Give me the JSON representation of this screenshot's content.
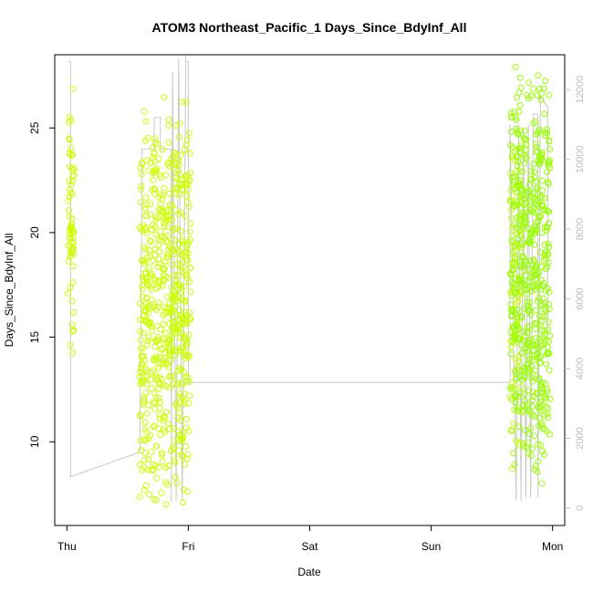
{
  "chart_data": {
    "type": "scatter",
    "title": "ATOM3 Northeast_Pacific_1 Days_Since_BdyInf_All",
    "xlabel": "Date",
    "ylabel": "Days_Since_BdyInf_All",
    "x_ticks": [
      "Thu",
      "Fri",
      "Sat",
      "Sun",
      "Mon"
    ],
    "x_tick_days": [
      0,
      1,
      2,
      3,
      4
    ],
    "xlim_days": [
      -0.1,
      4.1
    ],
    "ylim": [
      6.0,
      28.5
    ],
    "y_ticks": [
      10,
      15,
      20,
      25
    ],
    "y2_ticks": [
      0,
      2000,
      4000,
      6000,
      8000,
      10000,
      12000
    ],
    "y2lim": [
      -500,
      13000
    ],
    "grid": false,
    "series": [
      {
        "kind": "points",
        "color": "#ccff00",
        "clusters": [
          {
            "x_range_days": [
              0.01,
              0.06
            ],
            "y_range": [
              12.8,
              28.0
            ],
            "count": 70
          },
          {
            "x_range_days": [
              0.6,
              1.02
            ],
            "y_range": [
              6.4,
              27.0
            ],
            "count": 600
          },
          {
            "x_range_days": [
              3.65,
              3.75
            ],
            "y_range": [
              8.0,
              25.5
            ],
            "count": 80
          }
        ]
      },
      {
        "kind": "points",
        "color": "#99ff00",
        "clusters": [
          {
            "x_range_days": [
              3.65,
              3.98
            ],
            "y_range": [
              7.4,
              28.3
            ],
            "count": 520
          }
        ]
      },
      {
        "kind": "line",
        "axis": "right",
        "color": "#c8c8c8",
        "path": [
          [
            0.01,
            12800
          ],
          [
            0.03,
            12800
          ],
          [
            0.03,
            900
          ],
          [
            0.6,
            1600
          ],
          [
            0.6,
            1600
          ],
          [
            0.62,
            10300
          ],
          [
            0.72,
            10300
          ],
          [
            0.72,
            11200
          ],
          [
            0.77,
            11200
          ],
          [
            0.77,
            10300
          ],
          [
            0.86,
            10300
          ],
          [
            0.86,
            200
          ],
          [
            0.87,
            12500
          ],
          [
            0.9,
            200
          ],
          [
            0.92,
            12900
          ],
          [
            0.95,
            200
          ],
          [
            0.98,
            13000
          ],
          [
            0.98,
            12800
          ],
          [
            1.0,
            12800
          ],
          [
            1.0,
            3600
          ],
          [
            3.65,
            3600
          ],
          [
            3.65,
            11000
          ],
          [
            3.7,
            200
          ],
          [
            3.72,
            11000
          ],
          [
            3.74,
            200
          ],
          [
            3.76,
            10800
          ],
          [
            3.78,
            300
          ],
          [
            3.8,
            11000
          ],
          [
            3.82,
            300
          ],
          [
            3.84,
            11300
          ],
          [
            3.88,
            11300
          ],
          [
            3.88,
            300
          ],
          [
            3.9,
            11800
          ],
          [
            3.96,
            11500
          ],
          [
            3.96,
            5000
          ]
        ]
      }
    ]
  }
}
